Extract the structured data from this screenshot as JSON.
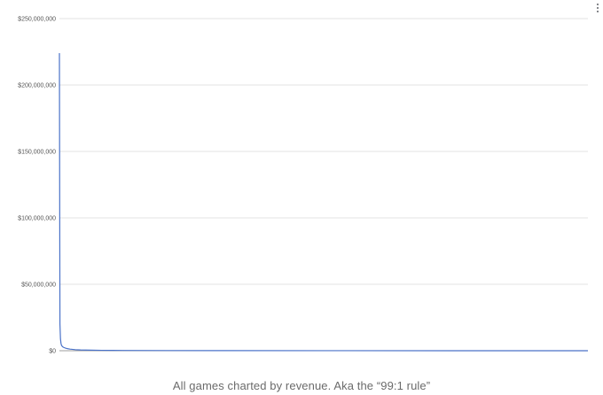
{
  "caption": "All games charted by revenue. Aka the “99:1 rule”",
  "menu": {
    "icon": "more-vert-icon"
  },
  "colors": {
    "series": "#4a72c8",
    "grid": "#e3e3e3",
    "baseline": "#9e9e9e"
  },
  "chart_data": {
    "type": "line",
    "title": "",
    "xlabel": "",
    "ylabel": "",
    "grid": true,
    "legend": "none",
    "ylim": [
      0,
      250000000
    ],
    "yticks": [
      0,
      50000000,
      100000000,
      150000000,
      200000000,
      250000000
    ],
    "ytick_labels": [
      "$0",
      "$50,000,000",
      "$100,000,000",
      "$150,000,000",
      "$200,000,000",
      "$250,000,000"
    ],
    "xlim": [
      0,
      1000
    ],
    "series": [
      {
        "x": [
          0,
          1,
          2,
          3,
          4,
          6,
          8,
          12,
          16,
          20,
          30,
          40,
          60,
          80,
          120,
          200,
          300,
          500,
          800,
          1000
        ],
        "values": [
          224000000,
          20000000,
          9000000,
          5500000,
          4000000,
          3000000,
          2500000,
          1900000,
          1500000,
          1200000,
          800000,
          600000,
          400000,
          300000,
          200000,
          120000,
          80000,
          40000,
          15000,
          0
        ]
      }
    ]
  }
}
